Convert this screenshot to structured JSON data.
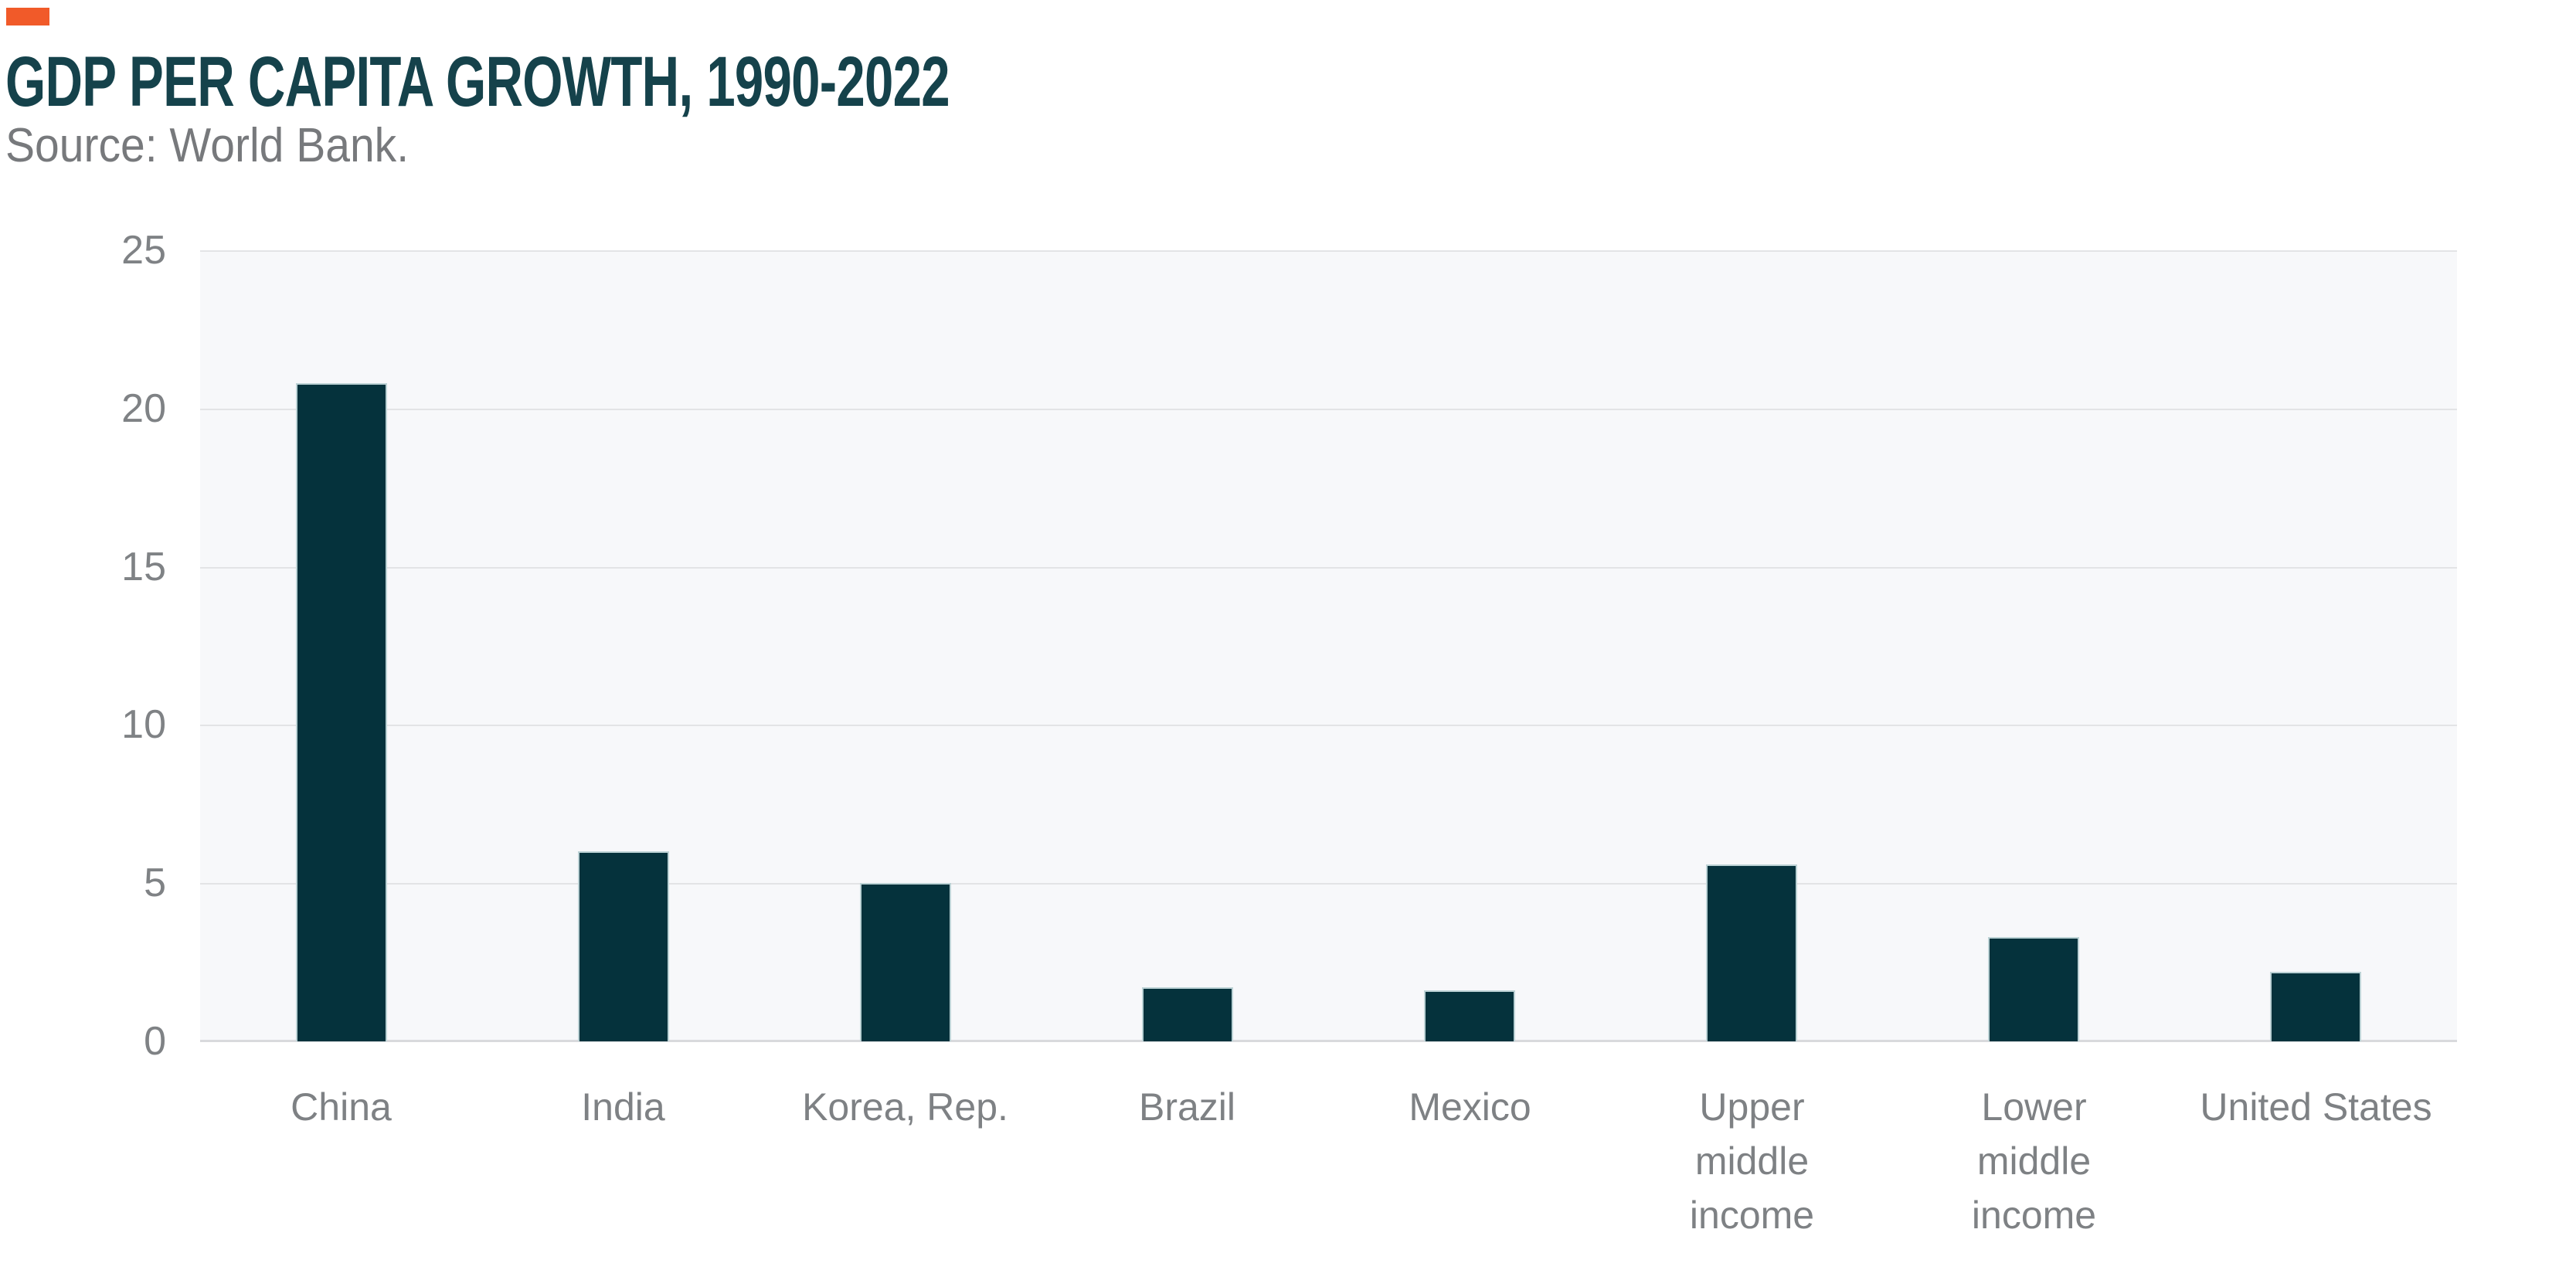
{
  "header": {
    "title": "GDP PER CAPITA GROWTH, 1990-2022",
    "source": "Source: World Bank.",
    "accent_color": "#f15a29",
    "title_color": "#15424b",
    "source_color": "#77797c"
  },
  "chart_data": {
    "type": "bar",
    "title": "GDP PER CAPITA GROWTH, 1990-2022",
    "source": "Source: World Bank.",
    "categories": [
      "China",
      "India",
      "Korea, Rep.",
      "Brazil",
      "Mexico",
      "Upper middle income",
      "Lower middle income",
      "United States"
    ],
    "categories_display": [
      [
        "China"
      ],
      [
        "India"
      ],
      [
        "Korea, Rep."
      ],
      [
        "Brazil"
      ],
      [
        "Mexico"
      ],
      [
        "Upper",
        "middle",
        "income"
      ],
      [
        "Lower",
        "middle",
        "income"
      ],
      [
        "United States"
      ]
    ],
    "values": [
      20.8,
      6.0,
      5.0,
      1.7,
      1.6,
      5.6,
      3.3,
      2.2
    ],
    "xlabel": "",
    "ylabel": "",
    "ylim": [
      0,
      25
    ],
    "yticks": [
      0,
      5,
      10,
      15,
      20,
      25
    ],
    "grid": "horizontal",
    "legend": "none",
    "colors": {
      "bar_fill": "#05323c",
      "bar_border": "#bcd2d5",
      "plot_background": "#f7f8fa",
      "gridline": "#e3e4e6",
      "axis_line": "#d9dadd",
      "tick_label": "#7f8285",
      "category_label": "#7e8184"
    }
  }
}
